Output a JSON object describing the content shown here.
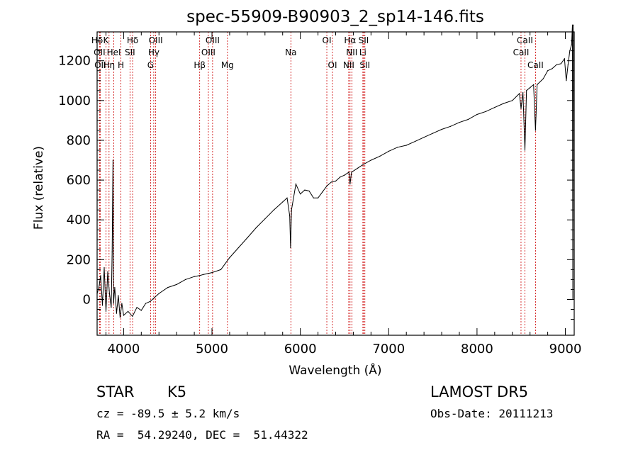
{
  "chart_data": {
    "type": "line",
    "title": "spec-55909-B90903_2_sp14-146.fits",
    "xlabel": "Wavelength (Å)",
    "ylabel": "Flux (relative)",
    "xlim": [
      3700,
      9100
    ],
    "ylim": [
      -180,
      1345
    ],
    "x_ticks": [
      4000,
      5000,
      6000,
      7000,
      8000,
      9000
    ],
    "x_tick_labels": [
      "4000",
      "5000",
      "6000",
      "7000",
      "8000",
      "9000"
    ],
    "y_ticks": [
      0,
      200,
      400,
      600,
      800,
      1000,
      1200
    ],
    "y_tick_labels": [
      "0",
      "200",
      "400",
      "600",
      "800",
      "1000",
      "1200"
    ],
    "grid": false,
    "series": [
      {
        "color": "#000000",
        "points": [
          [
            3700,
            30
          ],
          [
            3720,
            60
          ],
          [
            3740,
            120
          ],
          [
            3760,
            -30
          ],
          [
            3780,
            160
          ],
          [
            3800,
            -60
          ],
          [
            3820,
            140
          ],
          [
            3840,
            30
          ],
          [
            3860,
            -40
          ],
          [
            3870,
            240
          ],
          [
            3880,
            700
          ],
          [
            3885,
            -20
          ],
          [
            3900,
            60
          ],
          [
            3920,
            -70
          ],
          [
            3940,
            20
          ],
          [
            3960,
            -90
          ],
          [
            3980,
            -20
          ],
          [
            4000,
            -80
          ],
          [
            4050,
            -60
          ],
          [
            4100,
            -85
          ],
          [
            4150,
            -40
          ],
          [
            4200,
            -55
          ],
          [
            4250,
            -20
          ],
          [
            4300,
            -10
          ],
          [
            4350,
            10
          ],
          [
            4400,
            30
          ],
          [
            4500,
            60
          ],
          [
            4600,
            75
          ],
          [
            4700,
            100
          ],
          [
            4800,
            115
          ],
          [
            4860,
            120
          ],
          [
            4900,
            125
          ],
          [
            5000,
            135
          ],
          [
            5100,
            150
          ],
          [
            5200,
            210
          ],
          [
            5300,
            260
          ],
          [
            5400,
            310
          ],
          [
            5500,
            360
          ],
          [
            5600,
            405
          ],
          [
            5700,
            450
          ],
          [
            5800,
            490
          ],
          [
            5850,
            510
          ],
          [
            5880,
            420
          ],
          [
            5890,
            260
          ],
          [
            5900,
            450
          ],
          [
            5950,
            580
          ],
          [
            6000,
            530
          ],
          [
            6050,
            550
          ],
          [
            6100,
            545
          ],
          [
            6150,
            510
          ],
          [
            6200,
            510
          ],
          [
            6250,
            540
          ],
          [
            6300,
            570
          ],
          [
            6350,
            590
          ],
          [
            6400,
            595
          ],
          [
            6450,
            615
          ],
          [
            6500,
            625
          ],
          [
            6550,
            640
          ],
          [
            6563,
            580
          ],
          [
            6580,
            640
          ],
          [
            6650,
            660
          ],
          [
            6700,
            675
          ],
          [
            6800,
            700
          ],
          [
            6900,
            720
          ],
          [
            7000,
            745
          ],
          [
            7100,
            765
          ],
          [
            7200,
            775
          ],
          [
            7300,
            795
          ],
          [
            7400,
            815
          ],
          [
            7500,
            835
          ],
          [
            7600,
            855
          ],
          [
            7700,
            870
          ],
          [
            7800,
            890
          ],
          [
            7900,
            905
          ],
          [
            8000,
            930
          ],
          [
            8100,
            945
          ],
          [
            8200,
            965
          ],
          [
            8300,
            985
          ],
          [
            8400,
            1000
          ],
          [
            8480,
            1035
          ],
          [
            8498,
            960
          ],
          [
            8520,
            1040
          ],
          [
            8542,
            750
          ],
          [
            8560,
            1050
          ],
          [
            8600,
            1065
          ],
          [
            8640,
            1080
          ],
          [
            8662,
            850
          ],
          [
            8680,
            1080
          ],
          [
            8750,
            1110
          ],
          [
            8800,
            1150
          ],
          [
            8850,
            1160
          ],
          [
            8900,
            1180
          ],
          [
            8950,
            1185
          ],
          [
            8990,
            1210
          ],
          [
            9010,
            1100
          ],
          [
            9030,
            1180
          ],
          [
            9050,
            1250
          ],
          [
            9070,
            1280
          ],
          [
            9080,
            1380
          ],
          [
            9085,
            0
          ],
          [
            9090,
            1380
          ]
        ]
      }
    ],
    "spectral_lines": [
      {
        "label": "Hδ",
        "x": 3700,
        "row": 0,
        "color": "#cc0000"
      },
      {
        "label": "K",
        "x": 3800,
        "row": 0,
        "color": "#cc0000"
      },
      {
        "label": "Hδ",
        "x": 4102,
        "row": 0,
        "color": "#cc0000"
      },
      {
        "label": "OIII",
        "x": 4363,
        "row": 0,
        "color": "#cc0000"
      },
      {
        "label": "OIII",
        "x": 5007,
        "row": 0,
        "color": "#cc0000"
      },
      {
        "label": "OI",
        "x": 6300,
        "row": 0,
        "color": "#cc0000"
      },
      {
        "label": "Hα",
        "x": 6563,
        "row": 0,
        "color": "#cc0000"
      },
      {
        "label": "SII",
        "x": 6717,
        "row": 0,
        "color": "#cc0000"
      },
      {
        "label": "CaII",
        "x": 8542,
        "row": 0,
        "color": "#cc0000"
      },
      {
        "label": "OII",
        "x": 3727,
        "row": 1,
        "color": "#cc0000"
      },
      {
        "label": "HeI",
        "x": 3889,
        "row": 1,
        "color": "#cc0000"
      },
      {
        "label": "SII",
        "x": 4072,
        "row": 1,
        "color": "#cc0000"
      },
      {
        "label": "Hγ",
        "x": 4341,
        "row": 1,
        "color": "#cc0000"
      },
      {
        "label": "OIII",
        "x": 4959,
        "row": 1,
        "color": "#cc0000"
      },
      {
        "label": "Na",
        "x": 5893,
        "row": 1,
        "color": "#cc0000"
      },
      {
        "label": "NII",
        "x": 6583,
        "row": 1,
        "color": "#cc0000"
      },
      {
        "label": "Li",
        "x": 6708,
        "row": 1,
        "color": "#cc0000"
      },
      {
        "label": "CaII",
        "x": 8498,
        "row": 1,
        "color": "#cc0000"
      },
      {
        "label": "OII",
        "x": 3735,
        "row": 2,
        "color": "#cc0000"
      },
      {
        "label": "Hη",
        "x": 3835,
        "row": 2,
        "color": "#cc0000"
      },
      {
        "label": "H",
        "x": 3969,
        "row": 2,
        "color": "#cc0000"
      },
      {
        "label": "G",
        "x": 4305,
        "row": 2,
        "color": "#cc0000"
      },
      {
        "label": "Hβ",
        "x": 4861,
        "row": 2,
        "color": "#cc0000"
      },
      {
        "label": "Mg",
        "x": 5175,
        "row": 2,
        "color": "#cc0000"
      },
      {
        "label": "OI",
        "x": 6364,
        "row": 2,
        "color": "#cc0000"
      },
      {
        "label": "NII",
        "x": 6548,
        "row": 2,
        "color": "#cc0000"
      },
      {
        "label": "SII",
        "x": 6731,
        "row": 2,
        "color": "#cc0000"
      },
      {
        "label": "CaII",
        "x": 8662,
        "row": 2,
        "color": "#cc0000"
      }
    ]
  },
  "info": {
    "object_class": "STAR",
    "subclass": "K5",
    "survey": "LAMOST DR5",
    "cz": "cz = -89.5 ± 5.2 km/s",
    "obs_date": "Obs-Date: 20111213",
    "coords": "RA =  54.29240, DEC =  51.44322"
  }
}
